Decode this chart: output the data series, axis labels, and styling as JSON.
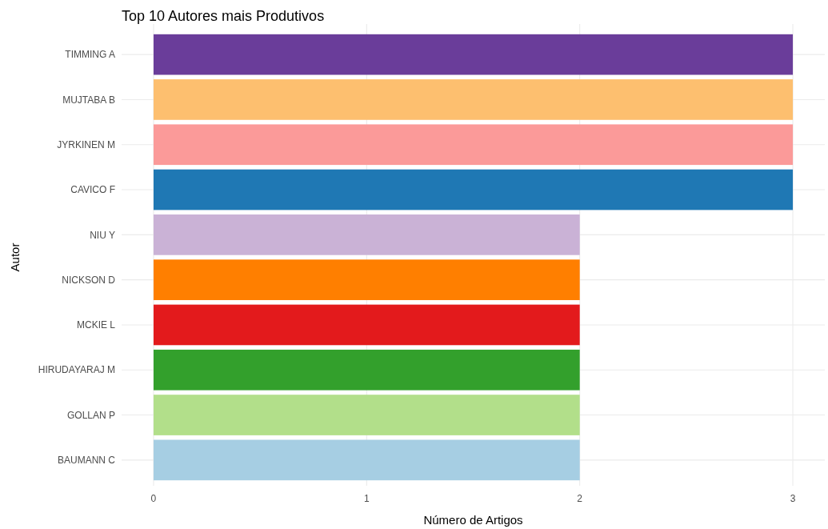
{
  "chart_data": {
    "type": "bar",
    "orientation": "horizontal",
    "title": "Top 10 Autores mais Produtivos",
    "xlabel": "Número de Artigos",
    "ylabel": "Autor",
    "categories": [
      "TIMMING A",
      "MUJTABA B",
      "JYRKINEN M",
      "CAVICO F",
      "NIU Y",
      "NICKSON D",
      "MCKIE L",
      "HIRUDAYARAJ M",
      "GOLLAN P",
      "BAUMANN C"
    ],
    "values": [
      3,
      3,
      3,
      3,
      2,
      2,
      2,
      2,
      2,
      2
    ],
    "colors": [
      "#6a3d9a",
      "#fdbf6f",
      "#fb9a99",
      "#1f78b4",
      "#cab2d6",
      "#ff7f00",
      "#e31a1c",
      "#33a02c",
      "#b2df8a",
      "#a6cee3"
    ],
    "xlim": [
      -0.15,
      3.15
    ],
    "xticks": [
      0,
      1,
      2,
      3
    ],
    "grid": true
  }
}
